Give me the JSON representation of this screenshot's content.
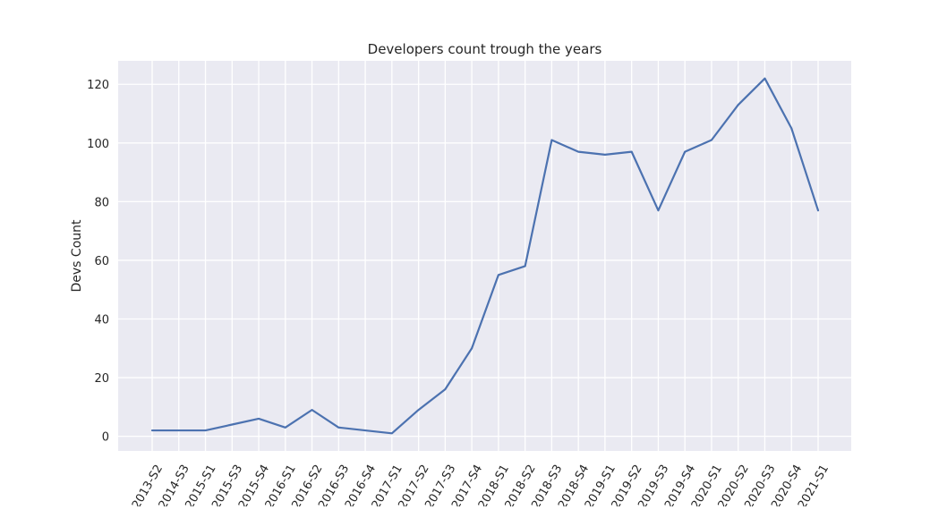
{
  "chart_data": {
    "type": "line",
    "title": "Developers count trough the years",
    "xlabel": "",
    "ylabel": "Devs Count",
    "categories": [
      "2013-S2",
      "2014-S3",
      "2015-S1",
      "2015-S3",
      "2015-S4",
      "2016-S1",
      "2016-S2",
      "2016-S3",
      "2016-S4",
      "2017-S1",
      "2017-S2",
      "2017-S3",
      "2017-S4",
      "2018-S1",
      "2018-S2",
      "2018-S3",
      "2018-S4",
      "2019-S1",
      "2019-S2",
      "2019-S3",
      "2019-S4",
      "2020-S1",
      "2020-S2",
      "2020-S3",
      "2020-S4",
      "2021-S1"
    ],
    "series": [
      {
        "values": [
          2,
          2,
          2,
          4,
          6,
          3,
          9,
          3,
          2,
          1,
          9,
          16,
          30,
          55,
          58,
          101,
          97,
          96,
          97,
          77,
          97,
          101,
          113,
          122,
          105,
          77
        ]
      }
    ],
    "ylim": [
      -5,
      128
    ],
    "yticks": [
      0,
      20,
      40,
      60,
      80,
      100,
      120
    ],
    "grid": true,
    "colors": {
      "plot_background": "#eaeaf2",
      "grid": "#ffffff",
      "line": "#4c72b0",
      "text": "#262626"
    }
  }
}
